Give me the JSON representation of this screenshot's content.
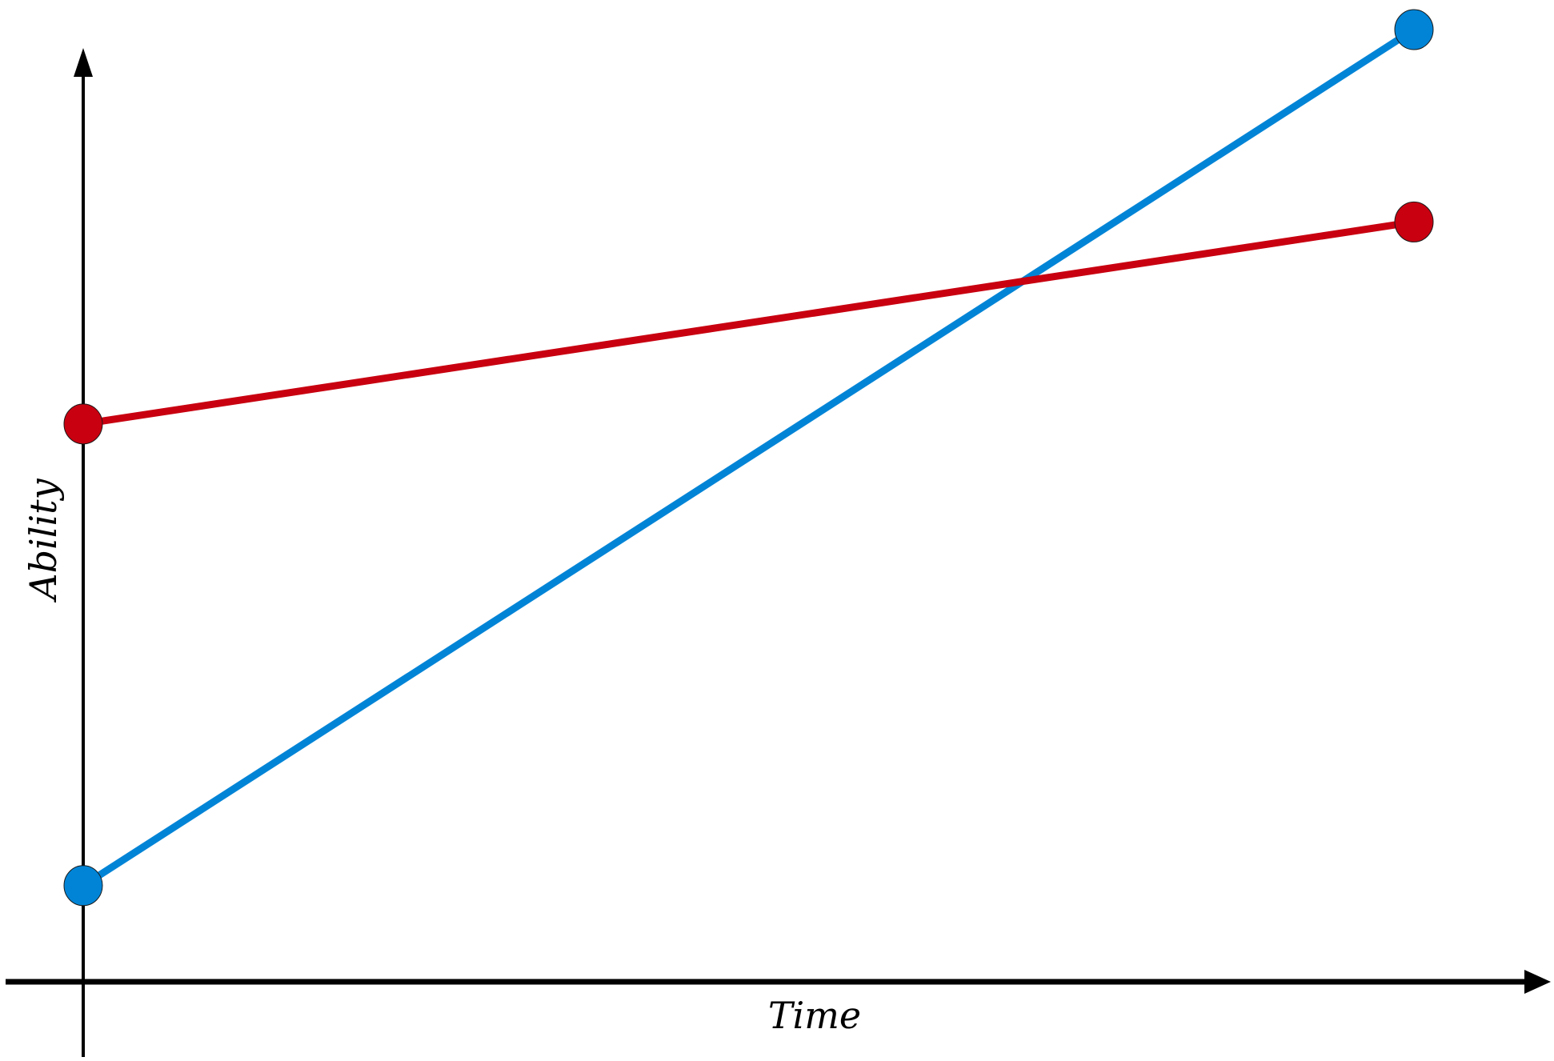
{
  "chart_data": {
    "type": "line",
    "xlabel": "Time",
    "ylabel": "Ability",
    "x": [
      0,
      1
    ],
    "xlim": [
      0,
      1
    ],
    "ylim": [
      0,
      1
    ],
    "grid": false,
    "series": [
      {
        "values": [
          0.1,
          0.99
        ],
        "color": "#0284d6"
      },
      {
        "values": [
          0.58,
          0.79
        ],
        "color": "#c80010"
      }
    ]
  }
}
